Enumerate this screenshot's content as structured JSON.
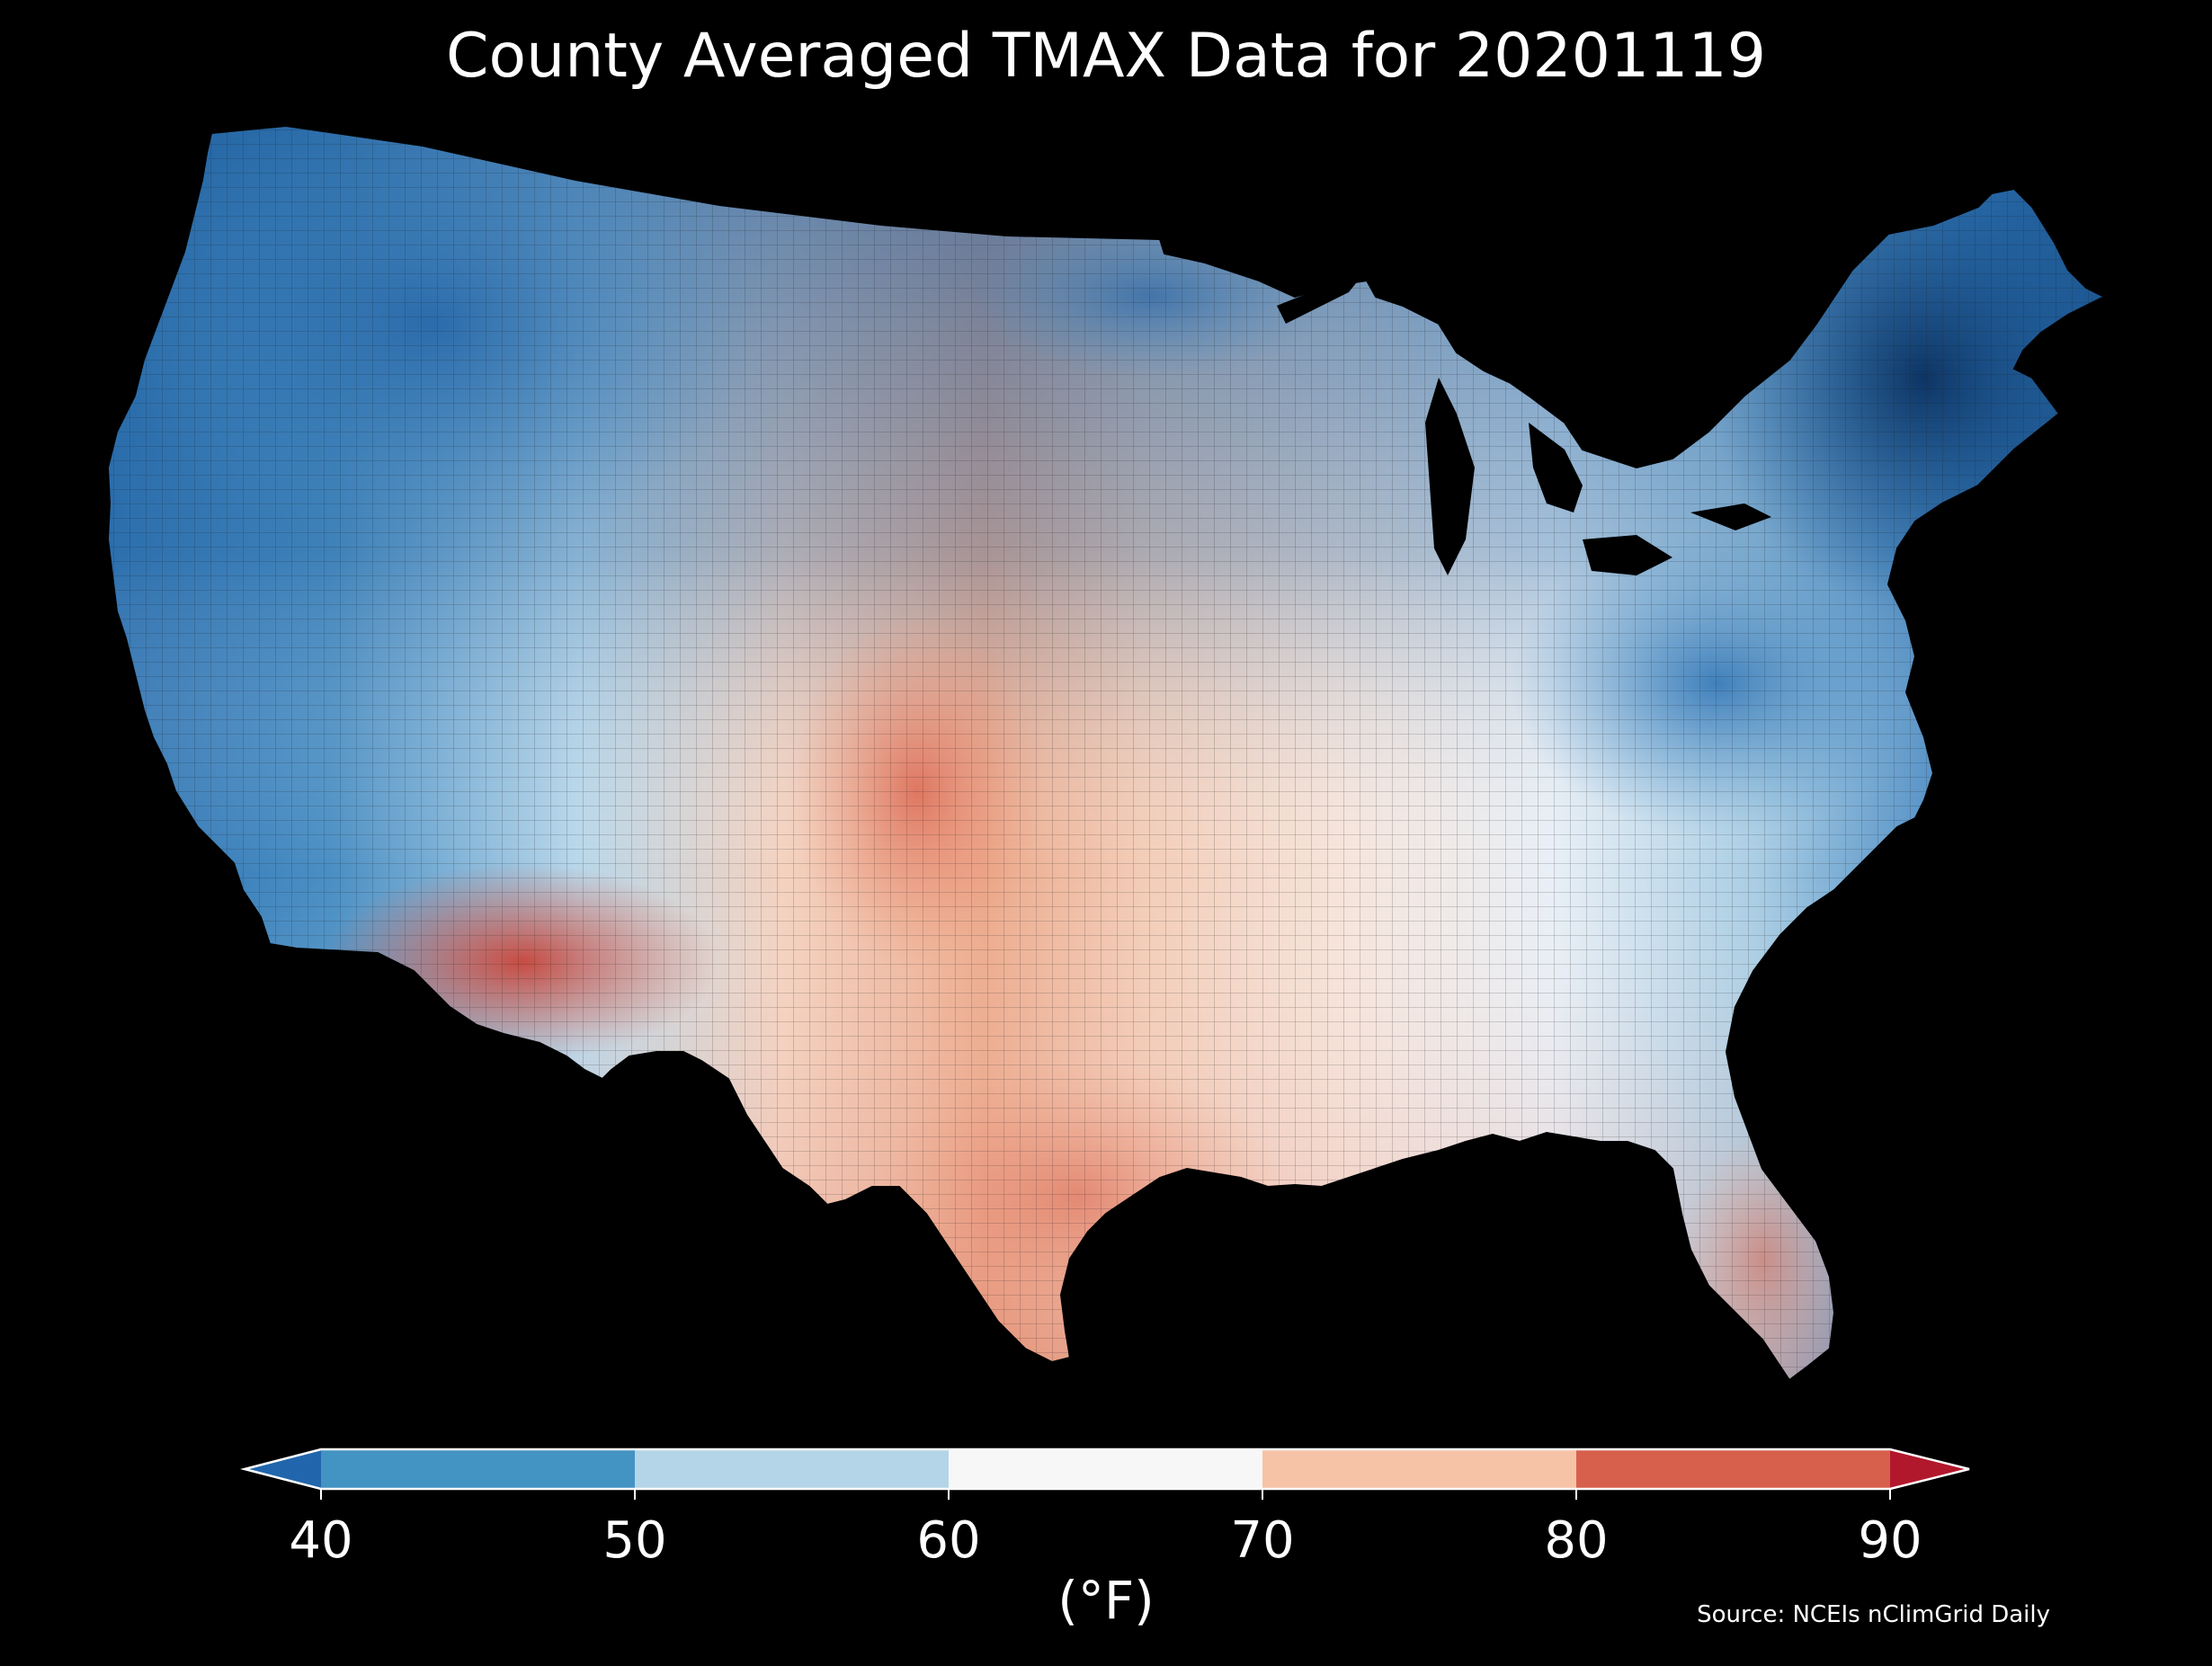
{
  "title": "County Averaged TMAX Data for 20201119",
  "colorbar": {
    "unit_label": "(°F)",
    "ticks": [
      "40",
      "50",
      "60",
      "70",
      "80",
      "90"
    ],
    "bins": [
      {
        "from": 40,
        "to": 50,
        "color": "#4393c3"
      },
      {
        "from": 50,
        "to": 60,
        "color": "#b3d5e7"
      },
      {
        "from": 60,
        "to": 70,
        "color": "#f7f7f7"
      },
      {
        "from": 70,
        "to": 80,
        "color": "#f7c3a7"
      },
      {
        "from": 80,
        "to": 90,
        "color": "#d7604d"
      }
    ],
    "under_color": "#2166ac",
    "over_color": "#b2182b",
    "outline_color": "#ffffff"
  },
  "source": "Source: NCEIs nClimGrid Daily",
  "map": {
    "region": "Contiguous United States counties",
    "background_color": "#000000",
    "color_palette": [
      "#0b3a6e",
      "#2166ac",
      "#4393c3",
      "#92c5de",
      "#d1e5f0",
      "#f7f7f7",
      "#fddbc7",
      "#f4a582",
      "#d6604d",
      "#b2182b"
    ]
  }
}
